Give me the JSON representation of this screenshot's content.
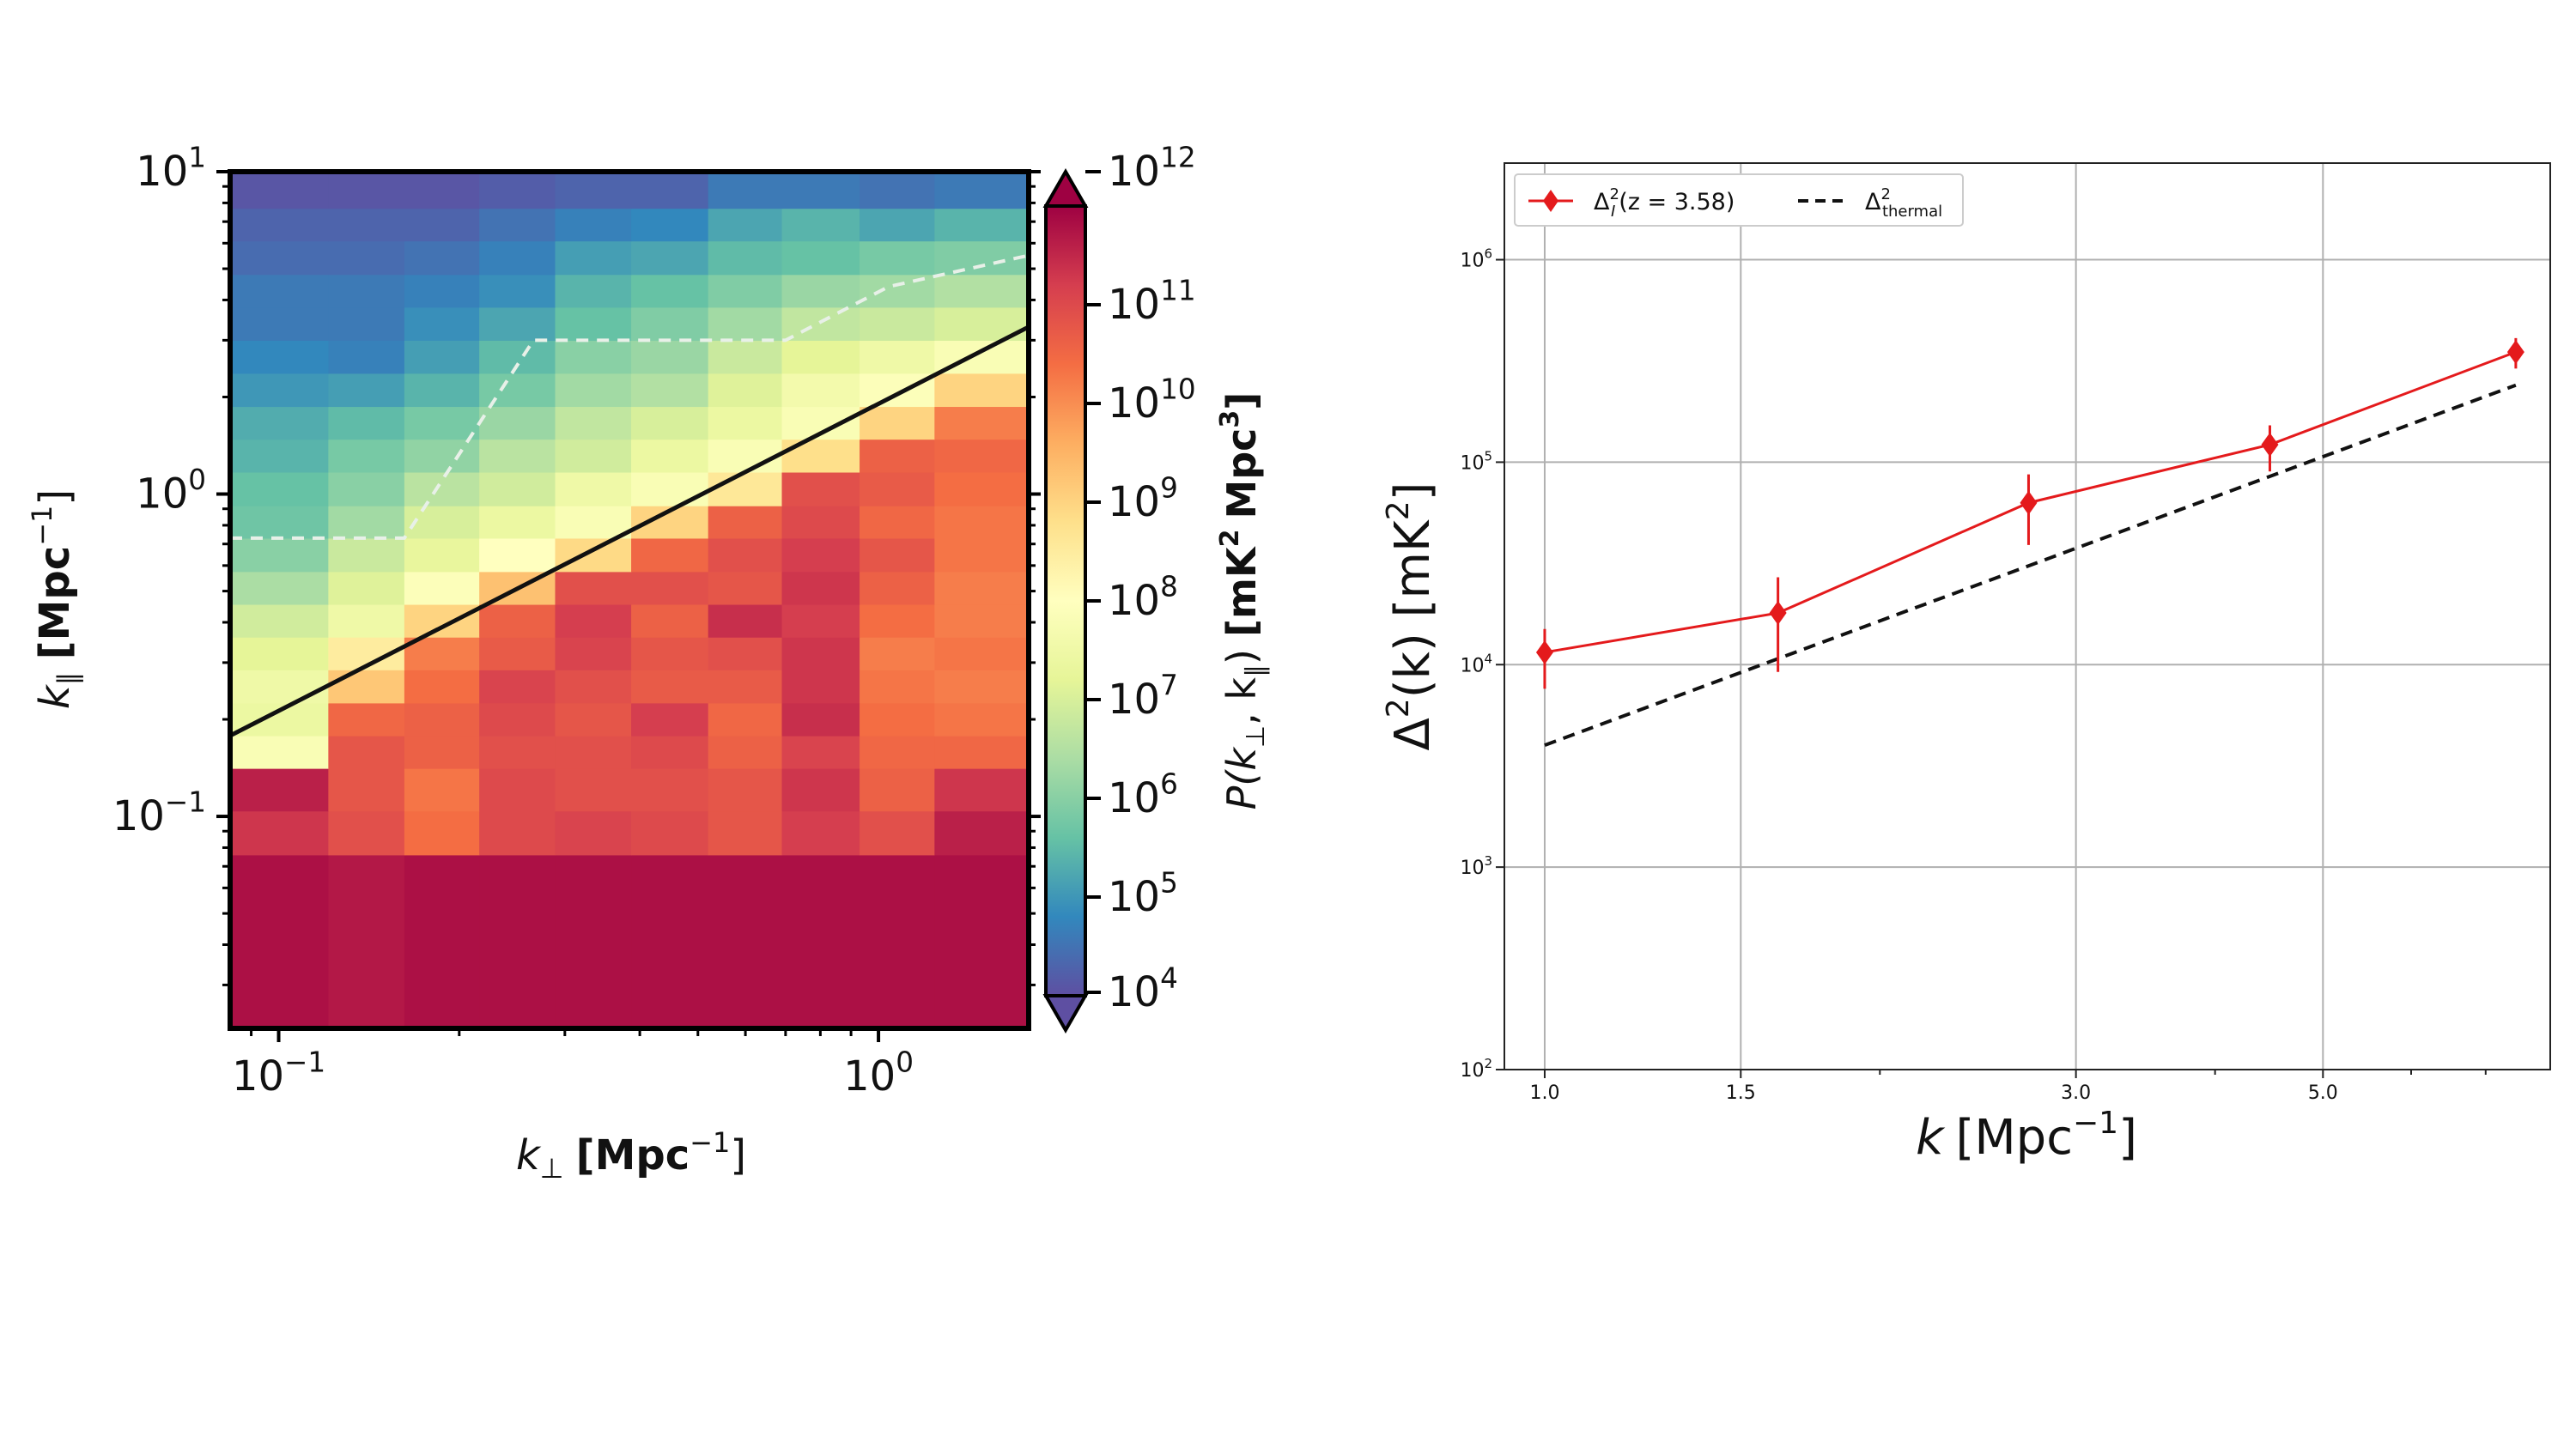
{
  "chart_data": [
    {
      "type": "heatmap",
      "title": "",
      "xlabel": "k",
      "xlabel_sub": "⊥",
      "xlabel_units": "[Mpc",
      "xlabel_units_close": "]",
      "ylabel": "k",
      "ylabel_sub": "∥",
      "ylabel_units": "[Mpc",
      "ylabel_units_close": "]",
      "superscript": "−1",
      "x_scale": "log",
      "y_scale": "log",
      "xlim": [
        0.083,
        1.78
      ],
      "ylim": [
        0.022,
        10.0
      ],
      "x_ticks": [
        {
          "value": 0.1,
          "base": "10",
          "exp": "−1"
        },
        {
          "value": 1.0,
          "base": "10",
          "exp": "0"
        }
      ],
      "y_ticks": [
        {
          "value": 0.1,
          "base": "10",
          "exp": "−1"
        },
        {
          "value": 1.0,
          "base": "10",
          "exp": "0"
        },
        {
          "value": 10.0,
          "base": "10",
          "exp": "1"
        }
      ],
      "x_bin_edges": [
        0.083,
        0.121,
        0.162,
        0.216,
        0.289,
        0.387,
        0.52,
        0.69,
        0.93,
        1.24,
        1.78
      ],
      "y_bin_edges": [
        0.022,
        0.076,
        0.104,
        0.141,
        0.178,
        0.225,
        0.285,
        0.36,
        0.455,
        0.575,
        0.73,
        0.92,
        1.17,
        1.48,
        1.87,
        2.37,
        3.0,
        3.8,
        4.8,
        6.1,
        7.7,
        10.0
      ],
      "log10_power_grid_rows_bottom_to_top": [
        [
          11.8,
          11.7,
          11.8,
          11.8,
          11.8,
          11.8,
          11.8,
          11.8,
          11.8,
          11.8
        ],
        [
          11.3,
          10.9,
          10.4,
          11.0,
          11.1,
          11.0,
          10.8,
          11.2,
          10.9,
          11.6
        ],
        [
          11.6,
          10.8,
          10.3,
          11.0,
          10.9,
          10.9,
          10.8,
          11.3,
          10.6,
          11.3
        ],
        [
          7.8,
          10.8,
          10.6,
          10.9,
          10.9,
          11.0,
          10.6,
          11.1,
          10.5,
          10.5
        ],
        [
          7.4,
          10.5,
          10.6,
          11.0,
          10.8,
          11.2,
          10.5,
          11.4,
          10.4,
          10.3
        ],
        [
          7.5,
          9.2,
          10.4,
          11.1,
          10.9,
          10.7,
          10.7,
          11.3,
          10.3,
          10.2
        ],
        [
          7.2,
          8.5,
          10.2,
          10.7,
          11.1,
          10.8,
          10.9,
          11.3,
          10.2,
          10.3
        ],
        [
          6.9,
          7.5,
          9.0,
          10.6,
          11.2,
          10.6,
          11.4,
          11.2,
          10.4,
          10.2
        ],
        [
          6.4,
          7.1,
          7.9,
          9.3,
          10.9,
          10.9,
          10.8,
          11.3,
          10.6,
          10.2
        ],
        [
          6.0,
          6.8,
          7.3,
          8.0,
          8.9,
          10.5,
          10.9,
          11.2,
          10.8,
          10.3
        ],
        [
          5.7,
          6.3,
          7.0,
          7.4,
          7.8,
          9.0,
          10.6,
          11.0,
          10.5,
          10.3
        ],
        [
          5.6,
          6.0,
          6.6,
          6.9,
          7.5,
          7.8,
          8.6,
          10.9,
          10.7,
          10.4
        ],
        [
          5.4,
          5.8,
          6.1,
          6.6,
          6.9,
          7.4,
          7.8,
          8.8,
          10.6,
          10.5
        ],
        [
          5.3,
          5.5,
          5.8,
          6.2,
          6.7,
          7.0,
          7.4,
          7.8,
          9.0,
          10.2
        ],
        [
          5.0,
          5.1,
          5.4,
          5.8,
          6.3,
          6.5,
          7.1,
          7.6,
          7.9,
          9.0
        ],
        [
          4.8,
          4.7,
          5.1,
          5.5,
          6.0,
          6.2,
          6.8,
          7.2,
          7.5,
          7.8
        ],
        [
          4.6,
          4.6,
          4.9,
          5.2,
          5.6,
          5.9,
          6.3,
          6.7,
          6.8,
          7.0
        ],
        [
          4.6,
          4.6,
          4.7,
          4.9,
          5.4,
          5.6,
          5.9,
          6.2,
          6.3,
          6.5
        ],
        [
          4.4,
          4.4,
          4.5,
          4.7,
          5.1,
          5.2,
          5.5,
          5.6,
          5.8,
          5.9
        ],
        [
          4.3,
          4.3,
          4.3,
          4.5,
          4.7,
          4.8,
          5.2,
          5.4,
          5.2,
          5.4
        ],
        [
          4.1,
          4.1,
          4.1,
          4.2,
          4.3,
          4.3,
          4.6,
          4.6,
          4.5,
          4.6
        ]
      ],
      "wedge_line": {
        "x": [
          0.083,
          1.78
        ],
        "y": [
          0.178,
          3.3
        ],
        "color": "#111111"
      },
      "dashed_boundary": {
        "x": [
          0.083,
          0.162,
          0.266,
          0.7,
          1.04,
          1.78
        ],
        "y": [
          0.73,
          0.73,
          3.0,
          3.0,
          4.4,
          5.5
        ],
        "color": "#e8f0e8"
      },
      "colorbar": {
        "label": "P(k",
        "label_sub1": "⊥",
        "label_sep": ", k",
        "label_sub2": "∥",
        "label_close": ")",
        "label_units": "[mK",
        "label_units_mid": "Mpc",
        "label_units_close": "]",
        "sup_2": "2",
        "sup_3": "3",
        "range_log10": [
          4,
          12
        ],
        "ticks": [
          {
            "value": 4,
            "base": "10",
            "exp": "4"
          },
          {
            "value": 5,
            "base": "10",
            "exp": "5"
          },
          {
            "value": 6,
            "base": "10",
            "exp": "6"
          },
          {
            "value": 7,
            "base": "10",
            "exp": "7"
          },
          {
            "value": 8,
            "base": "10",
            "exp": "8"
          },
          {
            "value": 9,
            "base": "10",
            "exp": "9"
          },
          {
            "value": 10,
            "base": "10",
            "exp": "10"
          },
          {
            "value": 11,
            "base": "10",
            "exp": "11"
          },
          {
            "value": 12,
            "base": "10",
            "exp": "12"
          }
        ],
        "colors": [
          "#5e4fa2",
          "#3288bd",
          "#66c2a5",
          "#abdda4",
          "#e6f598",
          "#ffffbf",
          "#fee08b",
          "#fdae61",
          "#f46d43",
          "#d53e4f",
          "#9e0142"
        ]
      }
    },
    {
      "type": "line",
      "title": "",
      "xlabel": "k",
      "xlabel_units": "[Mpc",
      "xlabel_units_close": "]",
      "xlabel_sup": "−1",
      "ylabel": "Δ",
      "ylabel_mid": "(k) [mK",
      "ylabel_close": "]",
      "ylabel_sup": "2",
      "x_scale": "log",
      "y_scale": "log",
      "xlim": [
        0.92,
        8.0
      ],
      "ylim": [
        100,
        3000000
      ],
      "x_ticks": [
        {
          "value": 1.0,
          "label": "1.0"
        },
        {
          "value": 1.5,
          "label": "1.5"
        },
        {
          "value": 3.0,
          "label": "3.0"
        },
        {
          "value": 5.0,
          "label": "5.0"
        }
      ],
      "y_ticks": [
        {
          "value": 100,
          "base": "10",
          "exp": "2"
        },
        {
          "value": 1000,
          "base": "10",
          "exp": "3"
        },
        {
          "value": 10000,
          "base": "10",
          "exp": "4"
        },
        {
          "value": 100000,
          "base": "10",
          "exp": "5"
        },
        {
          "value": 1000000,
          "base": "10",
          "exp": "6"
        }
      ],
      "grid": true,
      "legend_position": "top-left",
      "series": [
        {
          "name": "Δ",
          "legend_sup": "2",
          "legend_sub": "I",
          "legend_rest": "(z = 3.58)",
          "color": "#e41a1c",
          "style": "solid",
          "marker": "diamond",
          "x": [
            1.0,
            1.62,
            2.72,
            4.48,
            7.45
          ],
          "y": [
            11500,
            18000,
            63000,
            122000,
            350000
          ],
          "y_err_low": [
            7600,
            9200,
            39000,
            90000,
            290000
          ],
          "y_err_high": [
            15000,
            27000,
            87000,
            152000,
            410000
          ]
        },
        {
          "name": "Δ",
          "legend_sup": "2",
          "legend_sub": "thermal",
          "color": "#111111",
          "style": "dashed",
          "x": [
            1.0,
            7.45
          ],
          "y": [
            4000,
            240000
          ]
        }
      ]
    }
  ]
}
